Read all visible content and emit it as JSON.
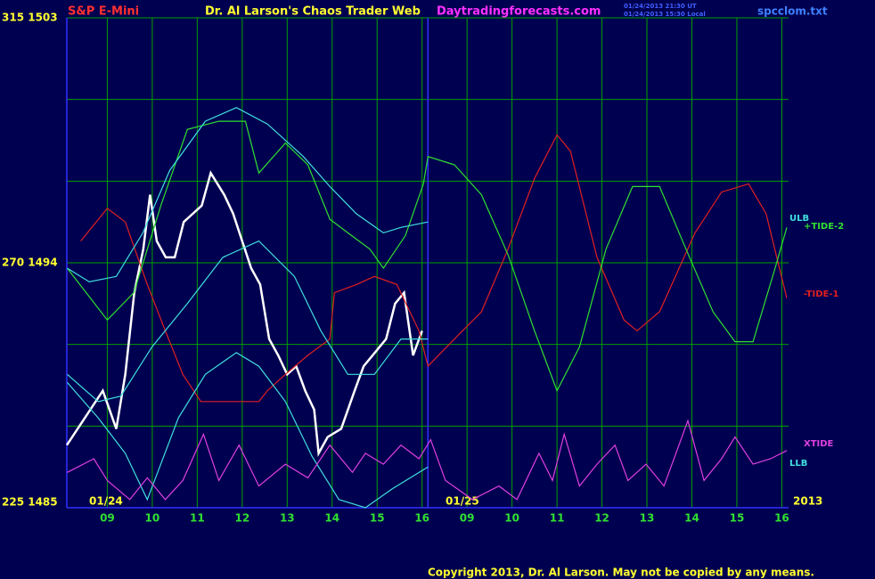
{
  "chart_data": {
    "type": "line",
    "title": "Dr. Al Larson's Chaos Trader Web",
    "subtitle": "S&P E-Mini",
    "website": "Daytradingforecasts.com",
    "timestamps": [
      "01/24/2013 21:30 UT",
      "01/24/2013 15:30 Local"
    ],
    "file": "spcclom.txt",
    "copyright": "Copyright 2013, Dr. Al Larson. May not be copied by any means.",
    "date_labels": [
      "01/24",
      "01/25",
      "2013"
    ],
    "background": "#000050",
    "grid": true,
    "grid_color": "#00a000",
    "xlim": [
      -0.9,
      15.15
    ],
    "xticks": [
      {
        "value": 0,
        "label": "09"
      },
      {
        "value": 1,
        "label": "10"
      },
      {
        "value": 2,
        "label": "11"
      },
      {
        "value": 3,
        "label": "12"
      },
      {
        "value": 4,
        "label": "13"
      },
      {
        "value": 5,
        "label": "14"
      },
      {
        "value": 6,
        "label": "15"
      },
      {
        "value": 7,
        "label": "16"
      },
      {
        "value": 8,
        "label": "09"
      },
      {
        "value": 9,
        "label": "10"
      },
      {
        "value": 10,
        "label": "11"
      },
      {
        "value": 11,
        "label": "12"
      },
      {
        "value": 12,
        "label": "13"
      },
      {
        "value": 13,
        "label": "14"
      },
      {
        "value": 14,
        "label": "15"
      },
      {
        "value": 15,
        "label": "16"
      }
    ],
    "session_divider_x": 7.13,
    "ylim": [
      1485,
      1503
    ],
    "yticks": [
      {
        "value": 1485,
        "label": "225 1485"
      },
      {
        "value": 1488,
        "label": null
      },
      {
        "value": 1491,
        "label": null
      },
      {
        "value": 1494,
        "label": "270 1494"
      },
      {
        "value": 1497,
        "label": null
      },
      {
        "value": 1500,
        "label": null
      },
      {
        "value": 1503,
        "label": "315 1503"
      }
    ],
    "series": [
      {
        "color": "#ffffff",
        "x": [
          -0.9,
          -0.5,
          -0.1,
          0.2,
          0.4,
          0.6,
          0.8,
          0.95,
          1.1,
          1.3,
          1.5,
          1.7,
          1.9,
          2.1,
          2.3,
          2.6,
          2.8,
          3.0,
          3.2,
          3.4,
          3.6,
          3.8,
          4.0,
          4.2,
          4.4,
          4.6,
          4.7,
          4.9,
          5.2,
          5.5,
          5.7,
          5.9,
          6.2,
          6.4,
          6.6,
          6.8,
          7.0
        ],
        "values": [
          1487.3,
          1488.3,
          1489.3,
          1487.9,
          1489.9,
          1492.9,
          1494.5,
          1496.5,
          1494.8,
          1494.2,
          1494.2,
          1495.5,
          1495.8,
          1496.1,
          1497.3,
          1496.5,
          1495.8,
          1494.8,
          1493.8,
          1493.2,
          1491.2,
          1490.6,
          1489.9,
          1490.2,
          1489.3,
          1488.6,
          1487.0,
          1487.6,
          1487.9,
          1489.3,
          1490.2,
          1490.6,
          1491.2,
          1492.5,
          1492.9,
          1490.6,
          1491.5
        ]
      },
      {
        "name": "-TIDE-1",
        "color": "#e02020",
        "x": [
          -0.59,
          0,
          0.4,
          0.89,
          1.29,
          1.68,
          2.08,
          2.87,
          3.37,
          3.56,
          3.96,
          4.46,
          4.95,
          5.05,
          5.54,
          5.94,
          6.44,
          6.93,
          7.13,
          7.72,
          8.32,
          8.91,
          9.5,
          10.0,
          10.3,
          10.89,
          11.49,
          11.78,
          12.28,
          13.07,
          13.66,
          14.26,
          14.65,
          15.11
        ],
        "values": [
          1494.8,
          1496.0,
          1495.5,
          1493.2,
          1491.5,
          1489.9,
          1488.9,
          1488.9,
          1488.9,
          1489.3,
          1489.9,
          1490.6,
          1491.2,
          1492.9,
          1493.2,
          1493.5,
          1493.2,
          1491.5,
          1490.2,
          1491.2,
          1492.2,
          1494.5,
          1497.1,
          1498.7,
          1498.1,
          1494.2,
          1491.9,
          1491.5,
          1492.2,
          1495.1,
          1496.6,
          1496.9,
          1495.8,
          1492.7
        ]
      },
      {
        "name": "+TIDE-2",
        "color": "#30e030",
        "x": [
          -0.89,
          0,
          0.59,
          1.19,
          1.78,
          2.48,
          3.07,
          3.37,
          3.96,
          4.46,
          4.95,
          5.35,
          5.84,
          6.14,
          6.63,
          7.03,
          7.13,
          7.72,
          8.32,
          8.91,
          9.5,
          10.0,
          10.5,
          11.09,
          11.68,
          12.28,
          12.87,
          13.47,
          13.96,
          14.36,
          14.85,
          15.11
        ],
        "values": [
          1493.8,
          1491.9,
          1492.9,
          1496.1,
          1498.9,
          1499.2,
          1499.2,
          1497.3,
          1498.4,
          1497.6,
          1495.6,
          1495.1,
          1494.5,
          1493.8,
          1495.0,
          1496.9,
          1497.9,
          1497.6,
          1496.5,
          1494.3,
          1491.5,
          1489.3,
          1490.9,
          1494.5,
          1496.8,
          1496.8,
          1494.5,
          1492.2,
          1491.1,
          1491.1,
          1493.8,
          1495.3
        ]
      },
      {
        "name": "ULB",
        "color": "#40e0e0",
        "x": [
          -0.89,
          -0.4,
          0.2,
          0.79,
          1.39,
          2.18,
          2.87,
          3.56,
          4.36,
          4.95,
          5.54,
          6.14,
          6.53,
          7.13
        ],
        "values": [
          1493.8,
          1493.3,
          1493.5,
          1495.1,
          1497.4,
          1499.2,
          1499.7,
          1499.1,
          1497.9,
          1496.8,
          1495.8,
          1495.1,
          1495.3,
          1495.5
        ]
      },
      {
        "color": "#40e0e0",
        "x": [
          -0.89,
          -0.2,
          0.3,
          0.99,
          1.78,
          2.57,
          3.37,
          4.16,
          4.75,
          5.35,
          5.94,
          6.53,
          7.13
        ],
        "values": [
          1489.9,
          1488.9,
          1489.1,
          1490.9,
          1492.5,
          1494.2,
          1494.8,
          1493.5,
          1491.5,
          1489.9,
          1489.9,
          1491.2,
          1491.2
        ]
      },
      {
        "name": "LLB",
        "color": "#40e0e0",
        "x": [
          -0.89,
          -0.2,
          0.4,
          0.89,
          1.58,
          2.18,
          2.87,
          3.37,
          3.96,
          4.55,
          5.15,
          5.74,
          6.34,
          7.13
        ],
        "values": [
          1489.6,
          1488.3,
          1487.0,
          1485.3,
          1488.3,
          1489.9,
          1490.7,
          1490.2,
          1488.9,
          1486.9,
          1485.3,
          1485.0,
          1485.7,
          1486.5
        ]
      },
      {
        "name": "XTIDE",
        "color": "#e040e0",
        "x": [
          -0.89,
          -0.3,
          0,
          0.5,
          0.89,
          1.29,
          1.68,
          2.14,
          2.48,
          2.93,
          3.37,
          3.96,
          4.46,
          4.95,
          5.45,
          5.74,
          6.14,
          6.53,
          6.93,
          7.19,
          7.52,
          8.12,
          8.71,
          9.11,
          9.6,
          9.9,
          10.16,
          10.5,
          10.89,
          11.29,
          11.58,
          11.98,
          12.38,
          12.91,
          13.27,
          13.66,
          13.96,
          14.36,
          14.75,
          15.11
        ],
        "values": [
          1486.3,
          1486.8,
          1486.0,
          1485.3,
          1486.1,
          1485.3,
          1486.0,
          1487.7,
          1486.0,
          1487.3,
          1485.8,
          1486.6,
          1486.1,
          1487.3,
          1486.3,
          1487.0,
          1486.6,
          1487.3,
          1486.8,
          1487.5,
          1486.0,
          1485.3,
          1485.8,
          1485.3,
          1487.0,
          1486.0,
          1487.7,
          1485.8,
          1486.6,
          1487.3,
          1486.0,
          1486.6,
          1485.8,
          1488.2,
          1486.0,
          1486.8,
          1487.6,
          1486.6,
          1486.8,
          1487.1
        ]
      }
    ]
  }
}
